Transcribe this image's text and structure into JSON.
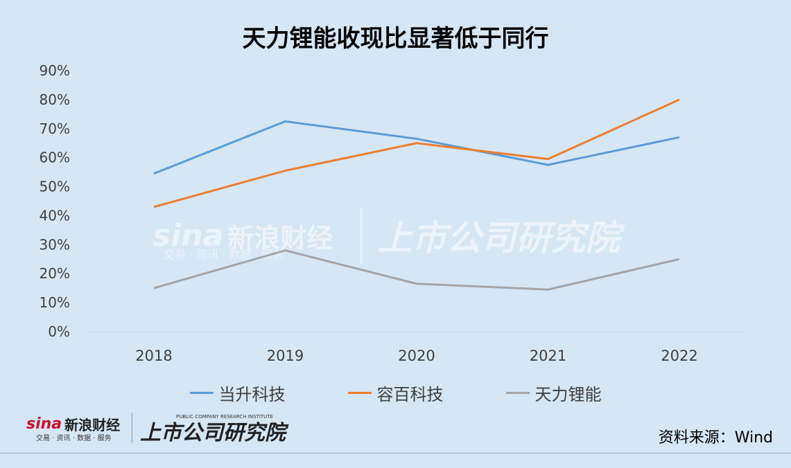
{
  "title": "天力锂能收现比显著低于同行",
  "source": "资料来源：Wind",
  "logos": {
    "sina": "sina",
    "sina_cn": "新浪财经",
    "sina_sub": "交易 · 资讯 · 数据 · 服务",
    "institute": "上市公司研究院",
    "institute_en": "PUBLIC COMPANY RESEARCH INSTITUTE"
  },
  "chart_data": {
    "type": "line",
    "title": "天力锂能收现比显著低于同行",
    "categories": [
      "2018",
      "2019",
      "2020",
      "2021",
      "2022"
    ],
    "y_tick_labels": [
      "0%",
      "10%",
      "20%",
      "30%",
      "40%",
      "50%",
      "60%",
      "70%",
      "80%",
      "90%"
    ],
    "ylim": [
      0,
      90
    ],
    "grid": false,
    "legend_position": "bottom",
    "series": [
      {
        "name": "当升科技",
        "color": "#5b9bd5",
        "values": [
          54.5,
          72.5,
          66.5,
          57.5,
          67
        ]
      },
      {
        "name": "容百科技",
        "color": "#ed7d31",
        "values": [
          43,
          55.5,
          65,
          59.5,
          80
        ]
      },
      {
        "name": "天力锂能",
        "color": "#a5a5a5",
        "values": [
          15,
          28,
          16.5,
          14.5,
          25
        ]
      }
    ]
  }
}
